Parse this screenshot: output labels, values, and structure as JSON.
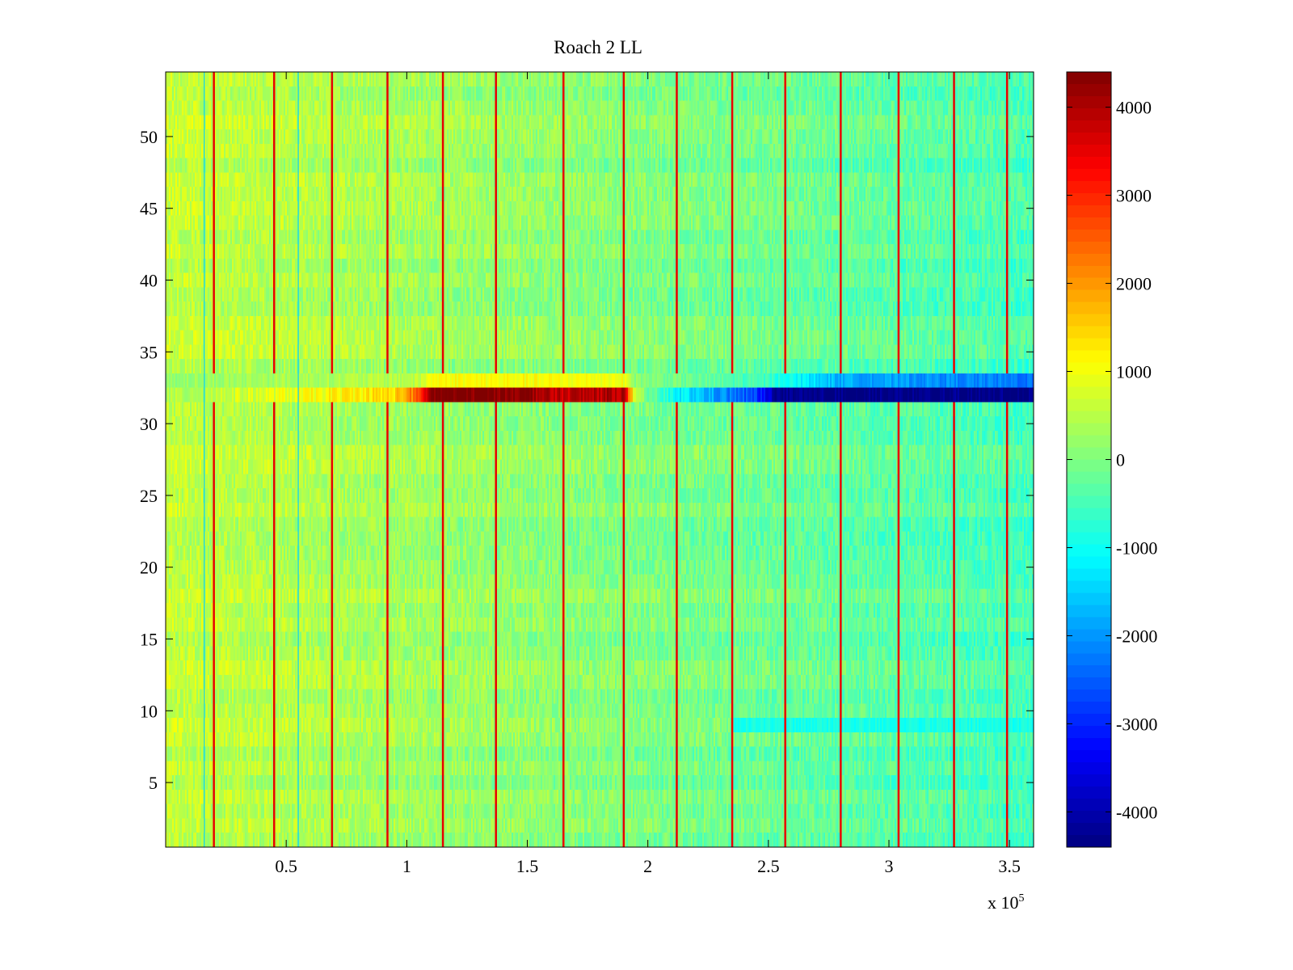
{
  "chart_data": {
    "type": "heatmap",
    "title": "Roach 2 LL",
    "xlabel": "",
    "ylabel": "",
    "x_exponent_label": "x 10",
    "x_exponent_power": "5",
    "x_scale": 100000,
    "xlim": [
      0,
      3.6
    ],
    "ylim": [
      0.5,
      54.5
    ],
    "x_ticks": [
      0.5,
      1,
      1.5,
      2,
      2.5,
      3,
      3.5
    ],
    "x_tick_labels": [
      "0.5",
      "1",
      "1.5",
      "2",
      "2.5",
      "3",
      "3.5"
    ],
    "y_ticks": [
      5,
      10,
      15,
      20,
      25,
      30,
      35,
      40,
      45,
      50
    ],
    "y_tick_labels": [
      "5",
      "10",
      "15",
      "20",
      "25",
      "30",
      "35",
      "40",
      "45",
      "50"
    ],
    "rows": 54,
    "colormap": "jet",
    "color_range": [
      -4400,
      4400
    ],
    "colorbar_ticks": [
      4000,
      3000,
      2000,
      1000,
      0,
      -1000,
      -2000,
      -3000,
      -4000
    ],
    "colorbar_tick_labels": [
      "4000",
      "3000",
      "2000",
      "1000",
      "0",
      "-1000",
      "-2000",
      "-3000",
      "-4000"
    ],
    "background_trend": {
      "x": [
        0,
        3.6
      ],
      "value": [
        600,
        -500
      ]
    },
    "spike_lines": {
      "x": [
        0.2,
        0.45,
        0.69,
        0.92,
        1.15,
        1.37,
        1.65,
        1.9,
        2.12,
        2.35,
        2.57,
        2.8,
        3.04,
        3.27,
        3.49
      ],
      "value": 3500
    },
    "blue_thin_lines": {
      "x": [
        0.16,
        0.55
      ],
      "value": -1500
    },
    "anomaly_row": {
      "y": 32,
      "x": [
        0,
        0.3,
        0.6,
        0.95,
        1.05,
        1.1,
        1.5,
        1.6,
        1.9,
        1.95,
        2.1,
        2.2,
        2.45,
        2.55,
        3.6
      ],
      "value": [
        300,
        700,
        1000,
        1400,
        2500,
        4400,
        4400,
        3800,
        4000,
        300,
        -1000,
        -1500,
        -2800,
        -4400,
        -4400
      ]
    },
    "adjacent_row": {
      "y": 33,
      "x": [
        0,
        1.05,
        1.1,
        1.9,
        1.95,
        2.5,
        2.6,
        2.8,
        3.6
      ],
      "value": [
        200,
        500,
        1100,
        1000,
        100,
        -600,
        -1000,
        -1800,
        -2300
      ]
    },
    "cyan_band": {
      "y": 9,
      "x_start": 2.35,
      "value": -900
    }
  }
}
